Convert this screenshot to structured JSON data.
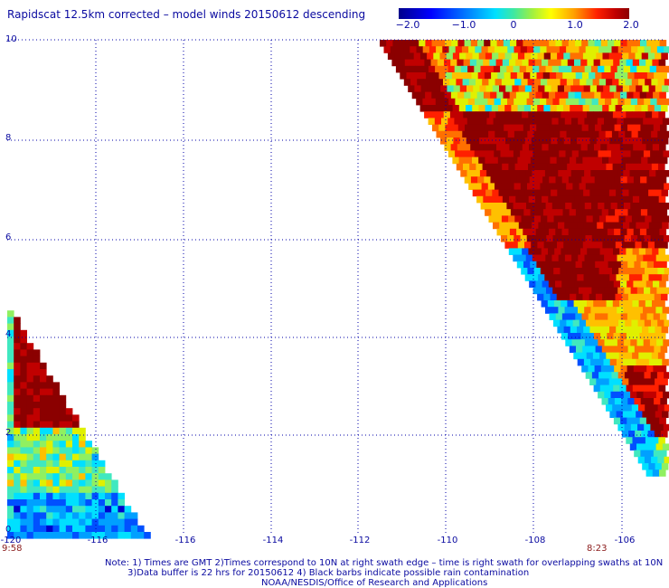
{
  "title": "Rapidscat 12.5km corrected – model winds 20150612 descending",
  "colorbar": {
    "ticks": [
      "−2.0",
      "−1.0",
      "0",
      "1.0",
      "2.0"
    ],
    "range": [
      -2.0,
      2.0
    ]
  },
  "axes": {
    "lat_labels": [
      "10",
      "8",
      "6",
      "4",
      "2",
      "0"
    ],
    "lon_labels": [
      "-120",
      "-116",
      "-116",
      "-114",
      "-112",
      "-110",
      "-108",
      "-106"
    ],
    "lat_range": [
      0,
      10
    ],
    "lon_range": [
      -120,
      -105
    ]
  },
  "time_labels": {
    "left": "9:58",
    "right": "8:23"
  },
  "notes": {
    "line1": "Note: 1) Times are GMT 2)Times correspond to 10N at right swath edge – time is right swath for overlapping swaths at 10N",
    "line2": "3)Data buffer is 22 hrs for 20150612 4) Black barbs indicate possible rain contamination",
    "line3": "NOAA/NESDIS/Office of Research and Applications"
  },
  "colors": {
    "dark_red": "#8b0000",
    "text_blue": "#0a0aa0",
    "grid_blue": "#0000aa"
  }
}
